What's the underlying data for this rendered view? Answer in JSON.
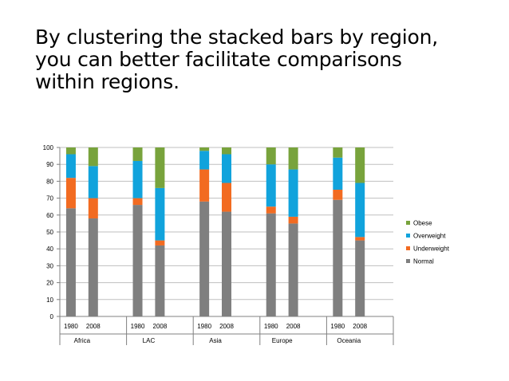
{
  "slide": {
    "title_lines": [
      "By clustering the stacked bars by region,",
      "you can better facilitate comparisons",
      "within regions."
    ]
  },
  "chart_data": {
    "type": "bar",
    "stacked": true,
    "grouped_by": "region",
    "groups": [
      {
        "name": "Africa",
        "categories": [
          "1980",
          "2008"
        ]
      },
      {
        "name": "LAC",
        "categories": [
          "1980",
          "2008"
        ]
      },
      {
        "name": "Asia",
        "categories": [
          "1980",
          "2008"
        ]
      },
      {
        "name": "Europe",
        "categories": [
          "1980",
          "2008"
        ]
      },
      {
        "name": "Oceania",
        "categories": [
          "1980",
          "2008"
        ]
      }
    ],
    "series": [
      {
        "name": "Normal",
        "color": "#7f7f7f",
        "values": [
          64,
          58,
          66,
          42,
          68,
          62,
          61,
          55,
          69,
          45
        ]
      },
      {
        "name": "Underweight",
        "color": "#f26b21",
        "values": [
          18,
          12,
          4,
          3,
          19,
          17,
          4,
          4,
          6,
          2
        ]
      },
      {
        "name": "Overweight",
        "color": "#11a3dc",
        "values": [
          14,
          19,
          22,
          31,
          11,
          17,
          25,
          28,
          19,
          32
        ]
      },
      {
        "name": "Obese",
        "color": "#78a33c",
        "values": [
          4,
          11,
          8,
          24,
          2,
          4,
          10,
          13,
          6,
          21
        ]
      }
    ],
    "ylim": [
      0,
      100
    ],
    "yticks": [
      0,
      10,
      20,
      30,
      40,
      50,
      60,
      70,
      80,
      90,
      100
    ],
    "grid": true,
    "legend_position": "right",
    "legend_order": [
      "Obese",
      "Overweight",
      "Underweight",
      "Normal"
    ]
  }
}
